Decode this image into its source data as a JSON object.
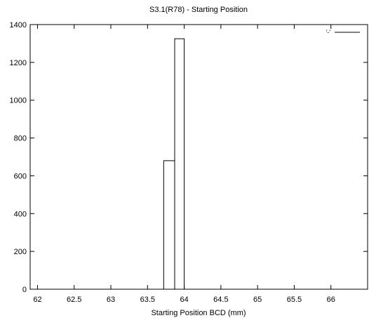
{
  "chart_data": {
    "type": "histogram-step",
    "title": "S3.1(R78) - Starting Position",
    "xlabel": "Starting Position BCD (mm)",
    "ylabel": "",
    "xlim": [
      61.9,
      66.5
    ],
    "ylim": [
      0,
      1400
    ],
    "xticks": [
      62,
      62.5,
      63,
      63.5,
      64,
      64.5,
      65,
      65.5,
      66
    ],
    "xtick_labels": [
      "62",
      "62.5",
      "63",
      "63.5",
      "64",
      "64.5",
      "65",
      "65.5",
      "66"
    ],
    "yticks": [
      0,
      200,
      400,
      600,
      800,
      1000,
      1200,
      1400
    ],
    "ytick_labels": [
      "0",
      "200",
      "400",
      "600",
      "800",
      "1000",
      "1200",
      "1400"
    ],
    "grid": false,
    "legend": {
      "position": "top-right",
      "entries": [
        "'-'"
      ]
    },
    "bins": [
      {
        "x0": 63.72,
        "x1": 63.87,
        "y": 680
      },
      {
        "x0": 63.87,
        "x1": 64.0,
        "y": 1325
      }
    ],
    "colors": {
      "line": "#000000",
      "background": "#ffffff"
    }
  }
}
